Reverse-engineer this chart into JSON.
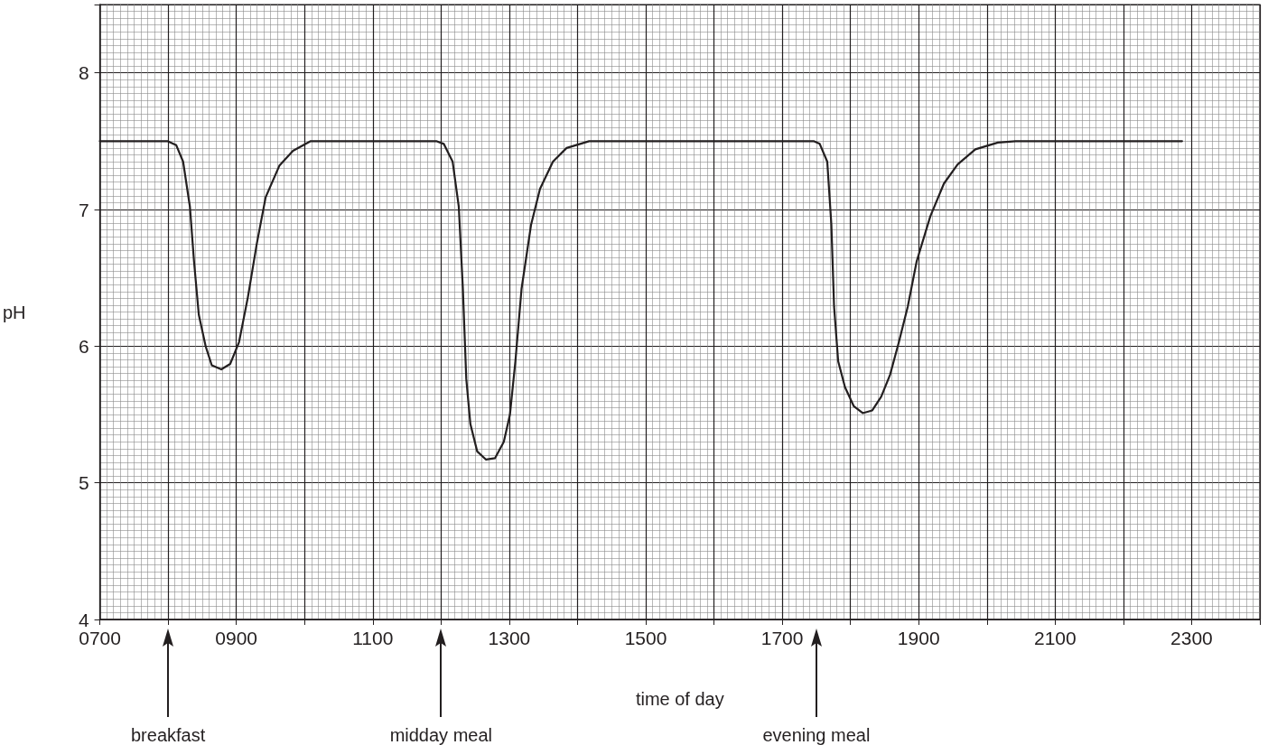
{
  "chart_data": {
    "type": "line",
    "xlabel": "time of day",
    "ylabel": "pH",
    "xlim": [
      700,
      2400
    ],
    "ylim": [
      4,
      8.5
    ],
    "xticks": [
      {
        "value": 700,
        "label": "0700"
      },
      {
        "value": 800,
        "label": null
      },
      {
        "value": 900,
        "label": "0900"
      },
      {
        "value": 1000,
        "label": null
      },
      {
        "value": 1100,
        "label": "1100"
      },
      {
        "value": 1200,
        "label": null
      },
      {
        "value": 1300,
        "label": "1300"
      },
      {
        "value": 1400,
        "label": null
      },
      {
        "value": 1500,
        "label": "1500"
      },
      {
        "value": 1600,
        "label": null
      },
      {
        "value": 1700,
        "label": "1700"
      },
      {
        "value": 1800,
        "label": null
      },
      {
        "value": 1900,
        "label": "1900"
      },
      {
        "value": 2000,
        "label": null
      },
      {
        "value": 2100,
        "label": "2100"
      },
      {
        "value": 2200,
        "label": null
      },
      {
        "value": 2300,
        "label": "2300"
      }
    ],
    "yticks": [
      4,
      5,
      6,
      7,
      8
    ],
    "grid": true,
    "marker": "none",
    "line_style": "solid",
    "series": [
      {
        "color": "#231f20",
        "x": [
          700,
          799,
          812,
          822,
          832,
          838,
          845,
          855,
          864,
          878,
          891,
          904,
          917,
          930,
          943,
          963,
          983,
          1009,
          1193,
          1204,
          1217,
          1226,
          1232,
          1237,
          1243,
          1253,
          1266,
          1279,
          1292,
          1301,
          1309,
          1318,
          1332,
          1345,
          1364,
          1384,
          1417,
          1746,
          1755,
          1766,
          1772,
          1776,
          1782,
          1792,
          1805,
          1818,
          1832,
          1845,
          1858,
          1871,
          1884,
          1897,
          1917,
          1937,
          1957,
          1983,
          2016,
          2042,
          2286
        ],
        "values": [
          7.5,
          7.5,
          7.47,
          7.35,
          7.02,
          6.62,
          6.23,
          6.0,
          5.86,
          5.83,
          5.87,
          6.03,
          6.36,
          6.75,
          7.09,
          7.32,
          7.43,
          7.5,
          7.5,
          7.48,
          7.35,
          7.02,
          6.42,
          5.76,
          5.43,
          5.23,
          5.17,
          5.18,
          5.3,
          5.5,
          5.89,
          6.42,
          6.89,
          7.15,
          7.35,
          7.45,
          7.5,
          7.5,
          7.48,
          7.35,
          6.89,
          6.29,
          5.89,
          5.7,
          5.56,
          5.51,
          5.53,
          5.63,
          5.79,
          6.03,
          6.29,
          6.62,
          6.95,
          7.19,
          7.33,
          7.44,
          7.49,
          7.5,
          7.5
        ]
      }
    ],
    "annotations": [
      "breakfast",
      "midday meal",
      "evening meal"
    ]
  }
}
